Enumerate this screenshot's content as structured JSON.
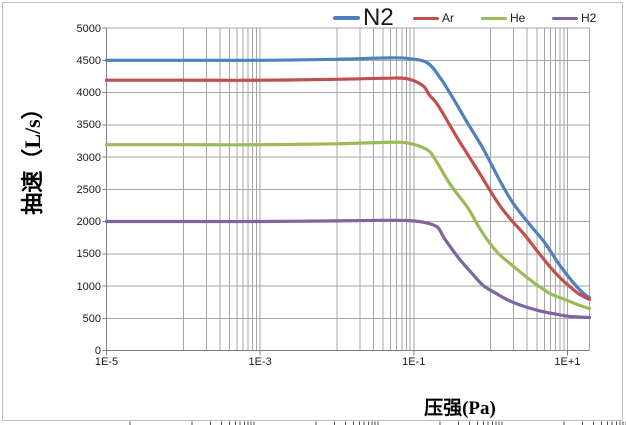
{
  "chart_data": {
    "type": "line",
    "title": "",
    "xlabel": "压强(Pa)",
    "ylabel": "抽速（L/s）",
    "x_scale": "log",
    "xlim": [
      1e-05,
      19.4
    ],
    "ylim": [
      0,
      5000
    ],
    "grid": true,
    "legend_position": "top",
    "x_tick_labels": [
      "1E-5",
      "1E-3",
      "1E-1",
      "1E+1"
    ],
    "x_tick_values": [
      1e-05,
      0.001,
      0.1,
      10
    ],
    "x_major_decades": [
      0.0001,
      0.001,
      0.01,
      0.1,
      1,
      10
    ],
    "x_minor_decades": [
      0.0001,
      0.01,
      1
    ],
    "y_tick_labels": [
      "0",
      "500",
      "1000",
      "1500",
      "2000",
      "2500",
      "3000",
      "3500",
      "4000",
      "4500",
      "5000"
    ],
    "y_tick_values": [
      0,
      500,
      1000,
      1500,
      2000,
      2500,
      3000,
      3500,
      4000,
      4500,
      5000
    ],
    "series": [
      {
        "name": "N2",
        "color": "#4F81BD",
        "points": [
          [
            1e-05,
            4500
          ],
          [
            0.0001,
            4500
          ],
          [
            0.001,
            4500
          ],
          [
            0.01,
            4515
          ],
          [
            0.04,
            4535
          ],
          [
            0.08,
            4530
          ],
          [
            0.15,
            4460
          ],
          [
            0.22,
            4230
          ],
          [
            0.3,
            3980
          ],
          [
            0.5,
            3530
          ],
          [
            0.8,
            3130
          ],
          [
            1.3,
            2650
          ],
          [
            1.9,
            2310
          ],
          [
            3,
            2000
          ],
          [
            5,
            1680
          ],
          [
            8,
            1320
          ],
          [
            12,
            1050
          ],
          [
            16,
            890
          ],
          [
            19.4,
            820
          ]
        ]
      },
      {
        "name": "Ar",
        "color": "#C0504D",
        "points": [
          [
            1e-05,
            4190
          ],
          [
            0.0001,
            4190
          ],
          [
            0.001,
            4190
          ],
          [
            0.01,
            4205
          ],
          [
            0.04,
            4220
          ],
          [
            0.08,
            4215
          ],
          [
            0.13,
            4110
          ],
          [
            0.16,
            3960
          ],
          [
            0.21,
            3790
          ],
          [
            0.38,
            3270
          ],
          [
            0.7,
            2770
          ],
          [
            1.26,
            2280
          ],
          [
            1.9,
            2010
          ],
          [
            2.7,
            1810
          ],
          [
            4,
            1550
          ],
          [
            6,
            1290
          ],
          [
            8,
            1130
          ],
          [
            10.3,
            1010
          ],
          [
            14,
            880
          ],
          [
            19.4,
            790
          ]
        ]
      },
      {
        "name": "He",
        "color": "#9BBB59",
        "points": [
          [
            1e-05,
            3190
          ],
          [
            0.0001,
            3190
          ],
          [
            0.001,
            3190
          ],
          [
            0.01,
            3205
          ],
          [
            0.04,
            3225
          ],
          [
            0.08,
            3220
          ],
          [
            0.15,
            3110
          ],
          [
            0.2,
            2920
          ],
          [
            0.3,
            2570
          ],
          [
            0.5,
            2220
          ],
          [
            0.7,
            1920
          ],
          [
            0.95,
            1680
          ],
          [
            1.3,
            1490
          ],
          [
            2,
            1300
          ],
          [
            3,
            1130
          ],
          [
            4.1,
            1010
          ],
          [
            6,
            880
          ],
          [
            8,
            820
          ],
          [
            10,
            775
          ],
          [
            14,
            705
          ],
          [
            19.4,
            650
          ]
        ]
      },
      {
        "name": "H2",
        "color": "#8064A2",
        "points": [
          [
            1e-05,
            2000
          ],
          [
            0.0001,
            2000
          ],
          [
            0.001,
            2000
          ],
          [
            0.01,
            2010
          ],
          [
            0.04,
            2018
          ],
          [
            0.08,
            2015
          ],
          [
            0.13,
            1990
          ],
          [
            0.2,
            1920
          ],
          [
            0.25,
            1740
          ],
          [
            0.38,
            1440
          ],
          [
            0.55,
            1220
          ],
          [
            0.8,
            1010
          ],
          [
            1.2,
            880
          ],
          [
            1.7,
            780
          ],
          [
            2.5,
            700
          ],
          [
            4,
            625
          ],
          [
            6,
            580
          ],
          [
            10,
            532
          ],
          [
            14,
            520
          ],
          [
            19.4,
            512
          ]
        ]
      }
    ]
  },
  "colors": {
    "gridline": "#A6A6A6",
    "axis": "#7F7F7F",
    "frame": "#BFBFBF",
    "text": "#1A1A1A",
    "artifact_tick": "#4D4D4D"
  }
}
